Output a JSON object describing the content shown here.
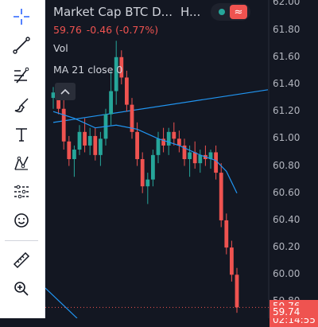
{
  "toolbar": {
    "tools": [
      {
        "name": "crosshair-icon"
      },
      {
        "name": "trend-line-icon"
      },
      {
        "name": "fib-retracement-icon"
      },
      {
        "name": "brush-icon"
      },
      {
        "name": "text-icon"
      },
      {
        "name": "pattern-icon"
      },
      {
        "name": "prediction-icon"
      },
      {
        "name": "emoji-icon"
      },
      {
        "name": "ruler-icon"
      },
      {
        "name": "zoom-in-icon"
      }
    ]
  },
  "header": {
    "symbol_title": "Market Cap BTC D...",
    "interval": "H...",
    "last_price": "59.76",
    "change": "-0.46 (-0.77%)",
    "status_icon": "wave-icon"
  },
  "legend": {
    "vol_label": "Vol",
    "ma_label": "MA 21 close 0"
  },
  "colors": {
    "up": "#26a69a",
    "down": "#ef5350",
    "ma": "#2196f3",
    "background": "#131722",
    "status_green": "#26a69a",
    "status_red": "#ef5350"
  },
  "price_axis": {
    "labels": [
      "62.00",
      "61.80",
      "61.60",
      "61.40",
      "61.20",
      "61.00",
      "60.80",
      "60.60",
      "60.40",
      "60.20",
      "60.00",
      "59.80"
    ],
    "current_price": "59.76",
    "countdown": "02:14:55",
    "lower_price": "59.74"
  },
  "chart_data": {
    "type": "candlestick",
    "ylim": [
      59.68,
      62.02
    ],
    "candles": [
      {
        "o": 61.3,
        "h": 61.38,
        "l": 61.22,
        "c": 61.34
      },
      {
        "o": 61.34,
        "h": 61.4,
        "l": 61.18,
        "c": 61.22
      },
      {
        "o": 61.22,
        "h": 61.3,
        "l": 60.92,
        "c": 60.98
      },
      {
        "o": 60.98,
        "h": 61.02,
        "l": 60.8,
        "c": 60.85
      },
      {
        "o": 60.85,
        "h": 60.95,
        "l": 60.72,
        "c": 60.92
      },
      {
        "o": 60.92,
        "h": 61.1,
        "l": 60.88,
        "c": 61.05
      },
      {
        "o": 61.05,
        "h": 61.15,
        "l": 60.9,
        "c": 60.95
      },
      {
        "o": 60.95,
        "h": 61.08,
        "l": 60.88,
        "c": 61.02
      },
      {
        "o": 61.02,
        "h": 61.08,
        "l": 60.84,
        "c": 60.88
      },
      {
        "o": 60.88,
        "h": 61.05,
        "l": 60.8,
        "c": 61.0
      },
      {
        "o": 61.0,
        "h": 61.22,
        "l": 60.95,
        "c": 61.18
      },
      {
        "o": 61.18,
        "h": 61.5,
        "l": 61.1,
        "c": 61.35
      },
      {
        "o": 61.35,
        "h": 61.72,
        "l": 61.25,
        "c": 61.6
      },
      {
        "o": 61.6,
        "h": 61.65,
        "l": 61.4,
        "c": 61.45
      },
      {
        "o": 61.45,
        "h": 61.5,
        "l": 61.2,
        "c": 61.25
      },
      {
        "o": 61.25,
        "h": 61.3,
        "l": 61.0,
        "c": 61.05
      },
      {
        "o": 61.05,
        "h": 61.12,
        "l": 60.8,
        "c": 60.85
      },
      {
        "o": 60.85,
        "h": 60.9,
        "l": 60.6,
        "c": 60.65
      },
      {
        "o": 60.65,
        "h": 60.75,
        "l": 60.52,
        "c": 60.7
      },
      {
        "o": 60.7,
        "h": 60.92,
        "l": 60.65,
        "c": 60.88
      },
      {
        "o": 60.88,
        "h": 61.05,
        "l": 60.82,
        "c": 61.0
      },
      {
        "o": 61.0,
        "h": 61.08,
        "l": 60.9,
        "c": 60.95
      },
      {
        "o": 60.95,
        "h": 61.08,
        "l": 60.88,
        "c": 61.05
      },
      {
        "o": 61.05,
        "h": 61.12,
        "l": 60.95,
        "c": 61.0
      },
      {
        "o": 61.0,
        "h": 61.06,
        "l": 60.9,
        "c": 60.95
      },
      {
        "o": 60.95,
        "h": 61.0,
        "l": 60.8,
        "c": 60.85
      },
      {
        "o": 60.85,
        "h": 60.95,
        "l": 60.72,
        "c": 60.9
      },
      {
        "o": 60.9,
        "h": 60.98,
        "l": 60.78,
        "c": 60.82
      },
      {
        "o": 60.82,
        "h": 60.92,
        "l": 60.75,
        "c": 60.88
      },
      {
        "o": 60.88,
        "h": 60.95,
        "l": 60.8,
        "c": 60.85
      },
      {
        "o": 60.85,
        "h": 60.92,
        "l": 60.78,
        "c": 60.9
      },
      {
        "o": 60.9,
        "h": 60.95,
        "l": 60.7,
        "c": 60.75
      },
      {
        "o": 60.75,
        "h": 60.82,
        "l": 60.35,
        "c": 60.4
      },
      {
        "o": 60.4,
        "h": 60.45,
        "l": 60.15,
        "c": 60.2
      },
      {
        "o": 60.2,
        "h": 60.25,
        "l": 59.95,
        "c": 60.0
      },
      {
        "o": 60.0,
        "h": 60.05,
        "l": 59.72,
        "c": 59.76
      }
    ],
    "ma": [
      {
        "i": 0,
        "v": 61.2
      },
      {
        "i": 4,
        "v": 61.15
      },
      {
        "i": 8,
        "v": 61.08
      },
      {
        "i": 12,
        "v": 61.1
      },
      {
        "i": 16,
        "v": 61.07
      },
      {
        "i": 20,
        "v": 61.0
      },
      {
        "i": 24,
        "v": 60.95
      },
      {
        "i": 28,
        "v": 60.88
      },
      {
        "i": 31,
        "v": 60.84
      },
      {
        "i": 33,
        "v": 60.76
      },
      {
        "i": 35,
        "v": 60.6
      }
    ],
    "trend_line": [
      {
        "i": 0,
        "v": 61.12
      },
      {
        "i": 35,
        "v": 61.36
      }
    ]
  }
}
